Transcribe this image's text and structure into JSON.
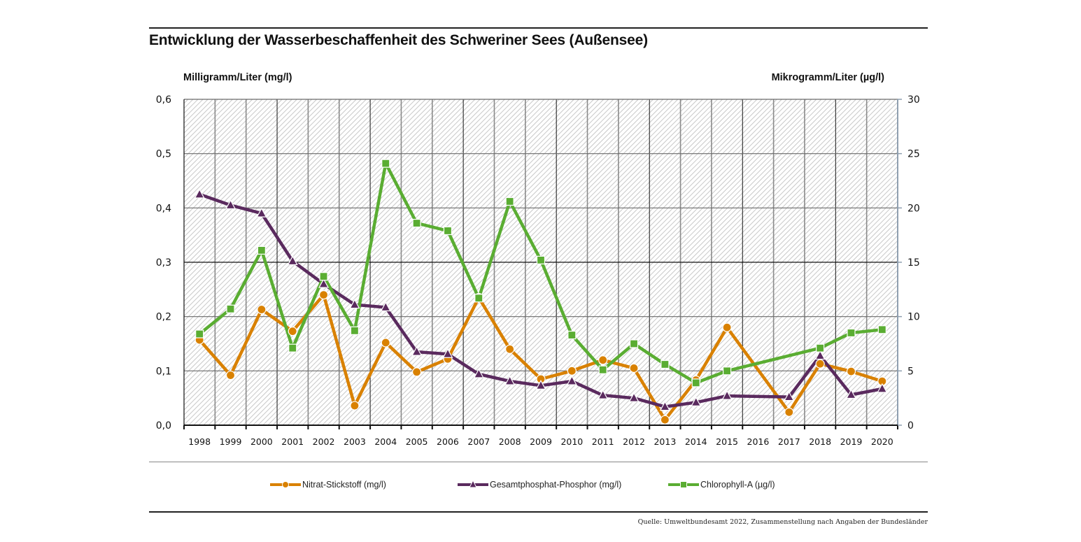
{
  "title": "Entwicklung der Wasserbeschaffenheit des Schweriner Sees (Außensee)",
  "source": "Quelle: Umweltbundesamt 2022, Zusammenstellung nach Angaben der Bundesländer",
  "colors": {
    "nitrat": "#d98100",
    "phosphor": "#5a2a5e",
    "chlorophyll": "#5aad32"
  },
  "chart_data": {
    "type": "line",
    "title": "Entwicklung der Wasserbeschaffenheit des Schweriner Sees (Außensee)",
    "xlabel": "",
    "ylabel": "Milligramm/Liter (mg/l)",
    "ylabel_right": "Mikrogramm/Liter (µg/l)",
    "ylim": [
      0,
      0.6
    ],
    "ylim_right": [
      0,
      30
    ],
    "yticks": [
      "0,0",
      "0,1",
      "0,2",
      "0,3",
      "0,4",
      "0,5",
      "0,6"
    ],
    "yticks_right": [
      "0",
      "5",
      "10",
      "15",
      "20",
      "25",
      "30"
    ],
    "grid": true,
    "legend_position": "bottom",
    "categories": [
      "1998",
      "1999",
      "2000",
      "2001",
      "2002",
      "2003",
      "2004",
      "2005",
      "2006",
      "2007",
      "2008",
      "2009",
      "2010",
      "2011",
      "2012",
      "2013",
      "2014",
      "2015",
      "2016",
      "2017",
      "2018",
      "2019",
      "2020"
    ],
    "series": [
      {
        "name": "Nitrat-Stickstoff (mg/l)",
        "axis": "left",
        "marker": "circle",
        "values": [
          0.157,
          0.092,
          0.213,
          0.173,
          0.24,
          0.036,
          0.152,
          0.098,
          0.122,
          0.235,
          0.14,
          0.085,
          0.1,
          0.12,
          0.105,
          0.01,
          0.083,
          0.18,
          null,
          0.024,
          0.113,
          0.099,
          0.081
        ]
      },
      {
        "name": "Gesamtphosphat-Phosphor (mg/l)",
        "axis": "left",
        "marker": "triangle",
        "values": [
          0.425,
          0.405,
          0.39,
          0.302,
          0.26,
          0.222,
          0.217,
          0.135,
          0.131,
          0.094,
          0.081,
          0.073,
          0.081,
          0.055,
          0.05,
          0.034,
          0.042,
          0.054,
          null,
          0.052,
          0.128,
          0.056,
          0.067
        ]
      },
      {
        "name": "Chlorophyll-A (µg/l)",
        "axis": "right",
        "marker": "square",
        "values": [
          8.4,
          10.7,
          16.1,
          7.1,
          13.7,
          8.7,
          24.1,
          18.6,
          17.9,
          11.7,
          20.6,
          15.2,
          8.3,
          5.1,
          7.5,
          5.6,
          3.9,
          5.0,
          null,
          null,
          7.1,
          8.5,
          8.8
        ]
      }
    ]
  }
}
